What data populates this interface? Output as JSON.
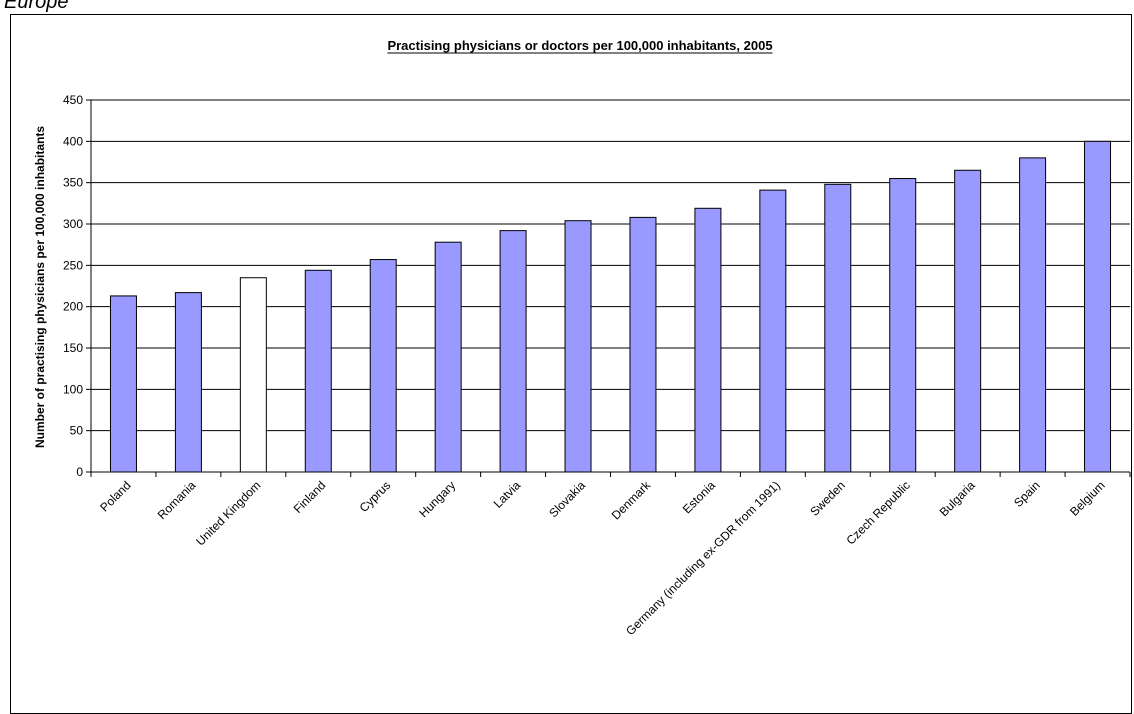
{
  "page_heading": "Europe",
  "chart_data": {
    "type": "bar",
    "title": "Practising physicians or doctors per 100,000 inhabitants, 2005",
    "xlabel": "",
    "ylabel": "Number of practising physicians per 100,000 inhabitants",
    "ylim": [
      0,
      450
    ],
    "yticks": [
      0,
      50,
      100,
      150,
      200,
      250,
      300,
      350,
      400,
      450
    ],
    "grid": true,
    "legend": "none",
    "categories": [
      "Poland",
      "Romania",
      "United Kingdom",
      "Finland",
      "Cyprus",
      "Hungary",
      "Latvia",
      "Slovakia",
      "Denmark",
      "Estonia",
      "Germany (including ex-GDR from 1991)",
      "Sweden",
      "Czech Republic",
      "Bulgaria",
      "Spain",
      "Belgium"
    ],
    "values": [
      213,
      217,
      235,
      244,
      257,
      278,
      292,
      304,
      308,
      319,
      341,
      348,
      355,
      365,
      380,
      400
    ],
    "colors": {
      "bar": "#9999ff",
      "highlight": "#ffffff",
      "highlight_category": "United Kingdom",
      "outline": "#000000",
      "grid": "#000000"
    }
  }
}
